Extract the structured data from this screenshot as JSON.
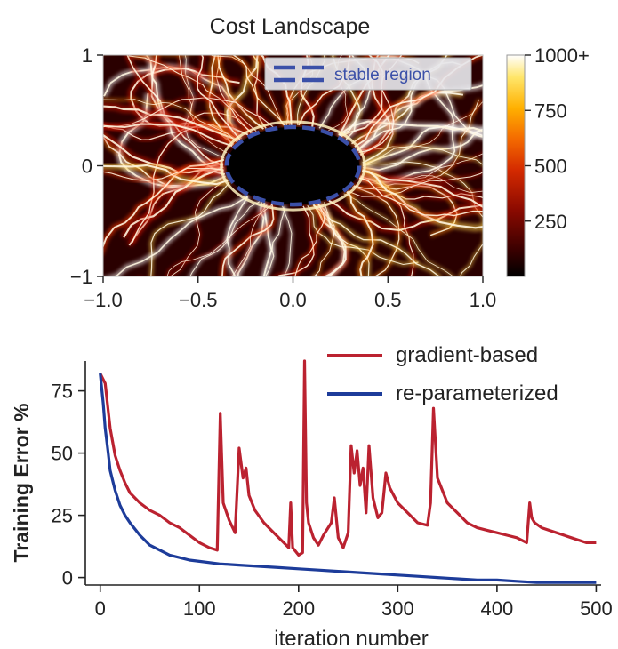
{
  "chart_data": [
    {
      "type": "heatmap",
      "title": "Cost Landscape",
      "xlabel": "",
      "ylabel": "",
      "xlim": [
        -1.0,
        1.0
      ],
      "ylim": [
        -1,
        1
      ],
      "x_ticks": [
        "-1.0",
        "-0.5",
        "0.0",
        "0.5",
        "1.0"
      ],
      "x_tick_values": [
        -1.0,
        -0.5,
        0.0,
        0.5,
        1.0
      ],
      "y_ticks": [
        "1",
        "0",
        "-1"
      ],
      "y_tick_values": [
        1,
        0,
        -1
      ],
      "legend": {
        "placement": "top-right",
        "entries": [
          {
            "label": "stable region",
            "style": "dashed",
            "color": "#3b50a8"
          }
        ]
      },
      "stable_region": {
        "center": [
          0.0,
          0.0
        ],
        "radius_x": 0.35,
        "radius_y": 0.35
      },
      "colorbar": {
        "ticks": [
          "1000+",
          "750",
          "500",
          "250"
        ],
        "tick_values": [
          1000,
          750,
          500,
          250
        ],
        "range": [
          0,
          1000
        ],
        "colormap": [
          "#000000",
          "#3a0000",
          "#8b0a00",
          "#d42a00",
          "#f46a00",
          "#ffb000",
          "#ffe66a",
          "#ffffff"
        ]
      },
      "grid": false
    },
    {
      "type": "line",
      "title": "",
      "xlabel": "iteration number",
      "ylabel": "Training Error %",
      "xlim": [
        -15,
        505
      ],
      "ylim": [
        -3,
        87
      ],
      "x_ticks": [
        "0",
        "100",
        "200",
        "300",
        "400",
        "500"
      ],
      "x_tick_values": [
        0,
        100,
        200,
        300,
        400,
        500
      ],
      "y_ticks": [
        "0",
        "25",
        "50",
        "75"
      ],
      "y_tick_values": [
        0,
        25,
        50,
        75
      ],
      "grid": false,
      "legend_placement": "top-right",
      "series": [
        {
          "name": "gradient-based",
          "color": "#bb2230",
          "x": [
            0,
            5,
            10,
            15,
            20,
            25,
            30,
            40,
            50,
            60,
            70,
            80,
            90,
            100,
            110,
            118,
            121,
            124,
            130,
            136,
            140,
            144,
            147,
            150,
            156,
            165,
            175,
            185,
            190,
            192,
            194,
            200,
            204,
            206,
            208,
            210,
            215,
            220,
            225,
            233,
            236,
            240,
            245,
            250,
            253,
            256,
            259,
            262,
            265,
            268,
            271,
            275,
            280,
            284,
            288,
            292,
            300,
            310,
            320,
            330,
            333,
            336,
            340,
            350,
            360,
            370,
            380,
            390,
            400,
            410,
            420,
            430,
            433,
            435,
            438,
            445,
            460,
            475,
            490,
            500
          ],
          "values": [
            82,
            78,
            60,
            49,
            43,
            38,
            34,
            30,
            27,
            25,
            22,
            20,
            17,
            14,
            12,
            11,
            66,
            30,
            23,
            18,
            52,
            40,
            44,
            33,
            27,
            22,
            18,
            14,
            12,
            30,
            12,
            9,
            10,
            87,
            30,
            22,
            16,
            13,
            17,
            22,
            32,
            16,
            12,
            18,
            53,
            42,
            51,
            37,
            44,
            26,
            53,
            32,
            24,
            26,
            42,
            36,
            30,
            26,
            22,
            21,
            30,
            68,
            40,
            30,
            26,
            22,
            20,
            19,
            18,
            17,
            16,
            14,
            30,
            24,
            22,
            20,
            18,
            16,
            14,
            14
          ]
        },
        {
          "name": "re-parameterized",
          "color": "#1d3c9a",
          "x": [
            0,
            3,
            5,
            8,
            10,
            15,
            20,
            25,
            30,
            40,
            50,
            60,
            70,
            80,
            90,
            100,
            120,
            140,
            160,
            180,
            200,
            220,
            240,
            260,
            280,
            300,
            320,
            340,
            360,
            380,
            400,
            420,
            440,
            460,
            480,
            500
          ],
          "values": [
            82,
            70,
            60,
            50,
            43,
            35,
            29,
            25,
            22,
            17,
            13,
            11,
            9,
            8,
            7,
            6.5,
            5.5,
            5,
            4.5,
            4,
            3.5,
            3,
            2.5,
            2,
            1.5,
            1,
            0.5,
            0,
            -0.5,
            -1,
            -1,
            -1.5,
            -2,
            -2,
            -2,
            -2
          ]
        }
      ]
    }
  ]
}
